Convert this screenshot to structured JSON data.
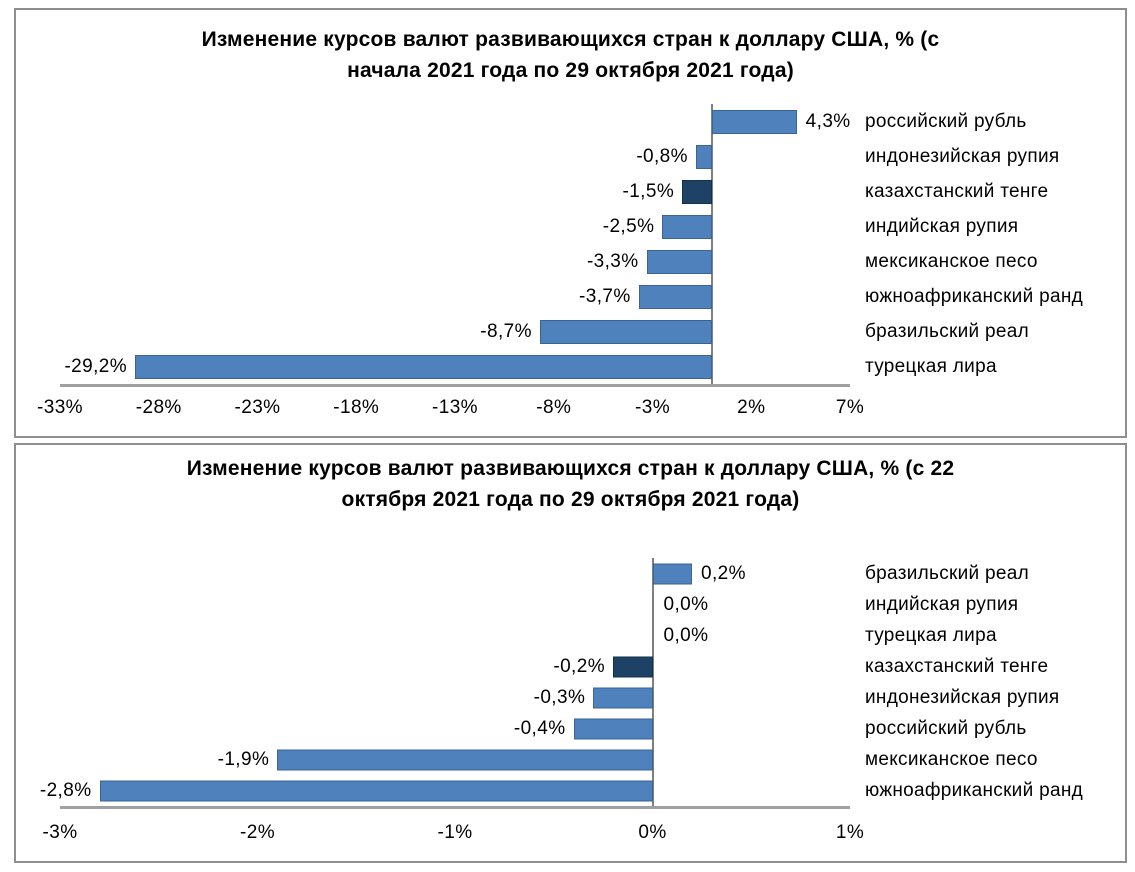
{
  "colors": {
    "bar_fill": "#4f81bd",
    "bar_border": "#3a6493",
    "highlight_fill": "#1e4166",
    "highlight_border": "#15304c",
    "zero_line": "#7f7f7f",
    "axis_line": "#a0a0a0",
    "panel_border": "#8f8f8f",
    "text": "#000000"
  },
  "chart_data": [
    {
      "type": "bar",
      "orientation": "horizontal",
      "title": "Изменение курсов валют развивающихся стран к доллару США, % (с начала 2021 года по 29 октября 2021 года)",
      "title_lines": [
        "Изменение курсов валют развивающихся стран к доллару США, % (с",
        "начала 2021 года по 29 октября 2021 года)"
      ],
      "categories": [
        "российский рубль",
        "индонезийская рупия",
        "казахстанский тенге",
        "индийская рупия",
        "мексиканское песо",
        "южноафриканский ранд",
        "бразильский реал",
        "турецкая лира"
      ],
      "values": [
        4.3,
        -0.8,
        -1.5,
        -2.5,
        -3.3,
        -3.7,
        -8.7,
        -29.2
      ],
      "value_labels": [
        "4,3%",
        "-0,8%",
        "-1,5%",
        "-2,5%",
        "-3,3%",
        "-3,7%",
        "-8,7%",
        "-29,2%"
      ],
      "highlight_index": 2,
      "highlight_category": "казахстанский тенге",
      "xlim": [
        -33,
        7
      ],
      "x_tick_values": [
        -33,
        -28,
        -23,
        -18,
        -13,
        -8,
        -3,
        2,
        7
      ],
      "x_tick_labels": [
        "-33%",
        "-28%",
        "-23%",
        "-18%",
        "-13%",
        "-8%",
        "-3%",
        "2%",
        "7%"
      ],
      "legend": "none",
      "grid": "off"
    },
    {
      "type": "bar",
      "orientation": "horizontal",
      "title": "Изменение курсов валют развивающихся стран к доллару США, % (с 22 октября 2021 года по 29 октября 2021 года)",
      "title_lines": [
        "Изменение курсов валют развивающихся стран к доллару США, % (с 22",
        "октября 2021 года по 29 октября 2021 года)"
      ],
      "categories": [
        "бразильский реал",
        "индийская рупия",
        "турецкая лира",
        "казахстанский тенге",
        "индонезийская рупия",
        "российский рубль",
        "мексиканское песо",
        "южноафриканский ранд"
      ],
      "values": [
        0.2,
        0.0,
        0.0,
        -0.2,
        -0.3,
        -0.4,
        -1.9,
        -2.8
      ],
      "value_labels": [
        "0,2%",
        "0,0%",
        "0,0%",
        "-0,2%",
        "-0,3%",
        "-0,4%",
        "-1,9%",
        "-2,8%"
      ],
      "highlight_index": 3,
      "highlight_category": "казахстанский тенге",
      "xlim": [
        -3,
        1
      ],
      "x_tick_values": [
        -3,
        -2,
        -1,
        0,
        1
      ],
      "x_tick_labels": [
        "-3%",
        "-2%",
        "-1%",
        "0%",
        "1%"
      ],
      "legend": "none",
      "grid": "off"
    }
  ]
}
